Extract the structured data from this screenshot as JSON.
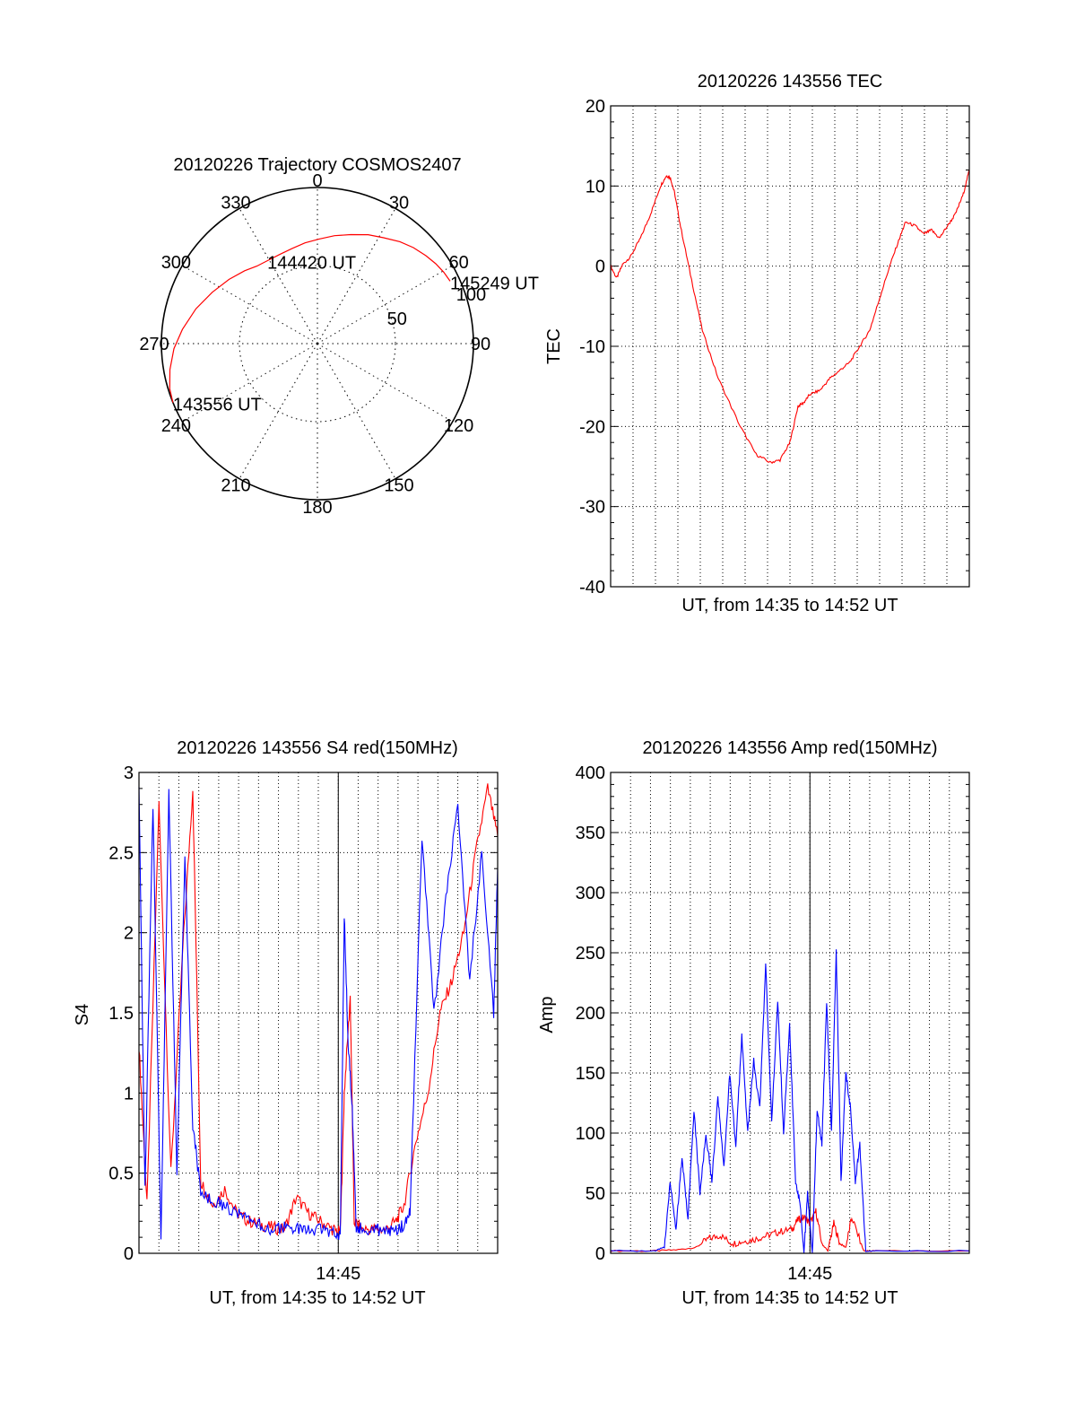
{
  "colors": {
    "red": "#ff0000",
    "blue": "#0000ff",
    "axis": "#000000",
    "grid": "#000000",
    "background": "#ffffff"
  },
  "chart_data": [
    {
      "id": "trajectory",
      "type": "polar",
      "title": "20120226 Trajectory COSMOS2407",
      "azimuth_labels": [
        "0",
        "30",
        "60",
        "90",
        "120",
        "150",
        "180",
        "210",
        "240",
        "270",
        "300",
        "330"
      ],
      "azimuth_values": [
        0,
        30,
        60,
        90,
        120,
        150,
        180,
        210,
        240,
        270,
        300,
        330
      ],
      "radial_ticks": [
        {
          "label": "50",
          "value": 50
        },
        {
          "label": "100",
          "value": 100
        }
      ],
      "zenith_max": 100,
      "grid": true,
      "annotations": [
        {
          "text": "145249 UT",
          "azimuth": 64.8,
          "zenith": 94
        },
        {
          "text": "144420 UT",
          "azimuth": 328.8,
          "zenith": 62
        },
        {
          "text": "143556 UT",
          "azimuth": 247.8,
          "zenith": 100
        }
      ],
      "series": [
        {
          "color": "red",
          "azimuth": [
            247.8,
            253,
            260,
            268,
            276,
            286,
            296,
            306,
            315,
            322,
            329,
            337,
            345,
            353,
            1,
            9,
            17,
            25,
            32,
            39,
            45,
            51,
            56,
            60.5,
            64.8
          ],
          "zenith": [
            100,
            99,
            96,
            92,
            87,
            81,
            75,
            70,
            66,
            63,
            62,
            62,
            63,
            65,
            67,
            70,
            73,
            77,
            80,
            84,
            87,
            89.5,
            91.5,
            93,
            94
          ]
        }
      ]
    },
    {
      "id": "tec",
      "type": "line",
      "title": "20120226 143556 TEC",
      "xlabel": "UT, from 14:35 to 14:52 UT",
      "ylabel": "TEC",
      "xlim": [
        14.5833,
        14.8833
      ],
      "ylim": [
        -40,
        20
      ],
      "yticks": [
        -40,
        -30,
        -20,
        -10,
        0,
        10,
        20
      ],
      "ytick_labels": [
        "-40",
        "-30",
        "-20",
        "-10",
        "0",
        "10",
        "20"
      ],
      "xticks": [],
      "grid": true,
      "series": [
        {
          "color": "red",
          "x": [
            14.5833,
            14.5883,
            14.5933,
            14.6,
            14.6083,
            14.6167,
            14.625,
            14.63,
            14.6333,
            14.6367,
            14.6417,
            14.65,
            14.66,
            14.6733,
            14.6917,
            14.705,
            14.7167,
            14.725,
            14.7333,
            14.74,
            14.745,
            14.75,
            14.7583,
            14.7667,
            14.775,
            14.7833,
            14.7917,
            14.8,
            14.8083,
            14.8167,
            14.825,
            14.83,
            14.8383,
            14.845,
            14.8517,
            14.8583,
            14.865,
            14.8717,
            14.8783,
            14.8833
          ],
          "y": [
            0,
            -1.5,
            0.2,
            1.2,
            3.5,
            6.5,
            10,
            11.3,
            11.0,
            9.2,
            5,
            -1,
            -8,
            -14,
            -20,
            -23.5,
            -24.5,
            -24.2,
            -22,
            -17.5,
            -17,
            -16,
            -15.5,
            -14,
            -13,
            -12,
            -10,
            -8,
            -4,
            0,
            3.5,
            5.5,
            5,
            4,
            4.5,
            3.5,
            5,
            6.5,
            9,
            12
          ]
        }
      ]
    },
    {
      "id": "s4",
      "type": "line",
      "title": "20120226 143556 S4 red(150MHz)",
      "xlabel": "UT, from 14:35 to 14:52 UT",
      "ylabel": "S4",
      "xlim": [
        14.5833,
        14.8833
      ],
      "ylim": [
        0,
        3
      ],
      "yticks": [
        0,
        0.5,
        1,
        1.5,
        2,
        2.5,
        3
      ],
      "ytick_labels": [
        "0",
        "0.5",
        "1",
        "1.5",
        "2",
        "2.5",
        "3"
      ],
      "xticks": [
        14.75
      ],
      "xtick_labels": [
        "14:45"
      ],
      "grid": true,
      "series": [
        {
          "color": "red",
          "x": [
            14.5833,
            14.59,
            14.6,
            14.61,
            14.62,
            14.6283,
            14.635,
            14.645,
            14.655,
            14.665,
            14.675,
            14.685,
            14.695,
            14.705,
            14.715,
            14.725,
            14.735,
            14.745,
            14.7517,
            14.755,
            14.76,
            14.7633,
            14.77,
            14.78,
            14.79,
            14.7983,
            14.805,
            14.815,
            14.825,
            14.835,
            14.845,
            14.855,
            14.865,
            14.875,
            14.8833
          ],
          "y": [
            1.3,
            0.3,
            2.8,
            0.5,
            1.9,
            2.9,
            0.45,
            0.3,
            0.4,
            0.25,
            0.2,
            0.18,
            0.16,
            0.15,
            0.35,
            0.25,
            0.2,
            0.15,
            0.13,
            1.0,
            1.6,
            0.2,
            0.15,
            0.15,
            0.15,
            0.2,
            0.3,
            0.7,
            1.0,
            1.5,
            1.7,
            2.0,
            2.5,
            2.9,
            2.6
          ]
        },
        {
          "color": "blue",
          "x": [
            14.5833,
            14.5883,
            14.595,
            14.6017,
            14.6083,
            14.615,
            14.6217,
            14.6283,
            14.635,
            14.645,
            14.655,
            14.665,
            14.675,
            14.685,
            14.695,
            14.705,
            14.715,
            14.725,
            14.735,
            14.745,
            14.7517,
            14.755,
            14.7583,
            14.7617,
            14.765,
            14.77,
            14.78,
            14.79,
            14.7983,
            14.805,
            14.81,
            14.82,
            14.83,
            14.84,
            14.85,
            14.86,
            14.87,
            14.88,
            14.8833
          ],
          "y": [
            2.9,
            0.4,
            2.8,
            0.1,
            2.9,
            0.5,
            2.5,
            0.8,
            0.38,
            0.33,
            0.3,
            0.25,
            0.2,
            0.17,
            0.15,
            0.16,
            0.15,
            0.14,
            0.15,
            0.13,
            0.12,
            2.1,
            1.3,
            0.9,
            0.16,
            0.15,
            0.15,
            0.14,
            0.15,
            0.18,
            0.25,
            2.6,
            1.5,
            2.2,
            2.8,
            1.7,
            2.5,
            1.5,
            2.4
          ]
        }
      ]
    },
    {
      "id": "amp",
      "type": "line",
      "title": "20120226 143556 Amp red(150MHz)",
      "xlabel": "UT, from 14:35 to 14:52 UT",
      "ylabel": "Amp",
      "xlim": [
        14.5833,
        14.8833
      ],
      "ylim": [
        0,
        400
      ],
      "yticks": [
        0,
        50,
        100,
        150,
        200,
        250,
        300,
        350,
        400
      ],
      "ytick_labels": [
        "0",
        "50",
        "100",
        "150",
        "200",
        "250",
        "300",
        "350",
        "400"
      ],
      "xticks": [
        14.75
      ],
      "xtick_labels": [
        "14:45"
      ],
      "grid": true,
      "series": [
        {
          "color": "red",
          "x": [
            14.5833,
            14.62,
            14.64,
            14.655,
            14.665,
            14.675,
            14.685,
            14.695,
            14.705,
            14.715,
            14.725,
            14.735,
            14.74,
            14.745,
            14.75,
            14.755,
            14.76,
            14.765,
            14.77,
            14.775,
            14.78,
            14.785,
            14.795,
            14.805,
            14.8833
          ],
          "y": [
            2,
            2,
            3,
            5,
            12,
            15,
            8,
            10,
            12,
            15,
            18,
            20,
            28,
            30,
            25,
            35,
            8,
            2,
            25,
            8,
            5,
            30,
            2,
            2,
            2
          ]
        },
        {
          "color": "blue",
          "x": [
            14.5833,
            14.62,
            14.6283,
            14.633,
            14.638,
            14.643,
            14.648,
            14.653,
            14.658,
            14.663,
            14.668,
            14.673,
            14.678,
            14.683,
            14.688,
            14.693,
            14.698,
            14.703,
            14.708,
            14.713,
            14.718,
            14.723,
            14.728,
            14.733,
            14.738,
            14.742,
            14.745,
            14.748,
            14.752,
            14.756,
            14.76,
            14.764,
            14.768,
            14.772,
            14.776,
            14.78,
            14.784,
            14.788,
            14.7917,
            14.7967,
            14.8833
          ],
          "y": [
            2,
            2,
            5,
            60,
            20,
            80,
            30,
            120,
            50,
            100,
            60,
            130,
            70,
            150,
            90,
            180,
            100,
            160,
            120,
            240,
            110,
            210,
            100,
            190,
            60,
            40,
            0,
            50,
            0,
            120,
            90,
            210,
            100,
            250,
            60,
            150,
            120,
            60,
            90,
            2,
            2
          ]
        }
      ]
    }
  ]
}
